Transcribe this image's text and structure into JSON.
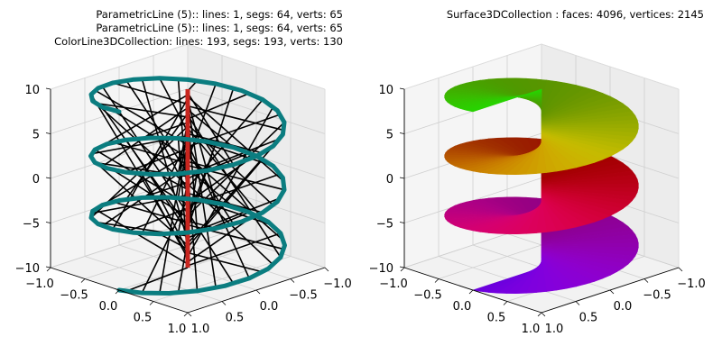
{
  "chart_data": [
    {
      "type": "3d-line",
      "title_lines": [
        "ParametricLine (5):: lines: 1, segs: 64, verts: 65",
        "ParametricLine (5):: lines: 1, segs: 64, verts: 65",
        "ColorLine3DCollection: lines: 193, segs: 193, verts: 130"
      ],
      "xlim": [
        -1,
        1
      ],
      "ylim": [
        -1,
        1
      ],
      "zlim": [
        -10,
        10
      ],
      "x_ticks": [
        "−1.0",
        "−0.5",
        "0.0",
        "0.5",
        "1.0"
      ],
      "y_ticks": [
        "−1.0",
        "−0.5",
        "0.0",
        "0.5",
        "1.0"
      ],
      "z_ticks": [
        "−10",
        "−5",
        "0",
        "5",
        "10"
      ],
      "series": [
        {
          "kind": "helix",
          "turns": 3,
          "z_range": [
            -10,
            10
          ],
          "radius": 1,
          "verts": 65
        },
        {
          "kind": "axis-line",
          "x": 0,
          "y": 0,
          "z_range": [
            -10,
            10
          ],
          "verts": 65
        },
        {
          "kind": "connectors",
          "lines": 193
        }
      ],
      "colors": {
        "helix": "#0b7d80",
        "axis": "#c8261f",
        "connectors": "#000000"
      }
    },
    {
      "type": "3d-surface",
      "title_lines": [
        "Surface3DCollection :  faces: 4096,  vertices: 2145"
      ],
      "xlim": [
        -1,
        1
      ],
      "ylim": [
        -1,
        1
      ],
      "zlim": [
        -10,
        10
      ],
      "x_ticks": [
        "−1.0",
        "−0.5",
        "0.0",
        "0.5",
        "1.0"
      ],
      "y_ticks": [
        "−1.0",
        "−0.5",
        "0.0",
        "0.5",
        "1.0"
      ],
      "z_ticks": [
        "−10",
        "−5",
        "0",
        "5",
        "10"
      ],
      "surface": {
        "kind": "helicoid",
        "turns": 3,
        "radius": 1,
        "faces": 4096,
        "vertices": 2145
      }
    }
  ]
}
